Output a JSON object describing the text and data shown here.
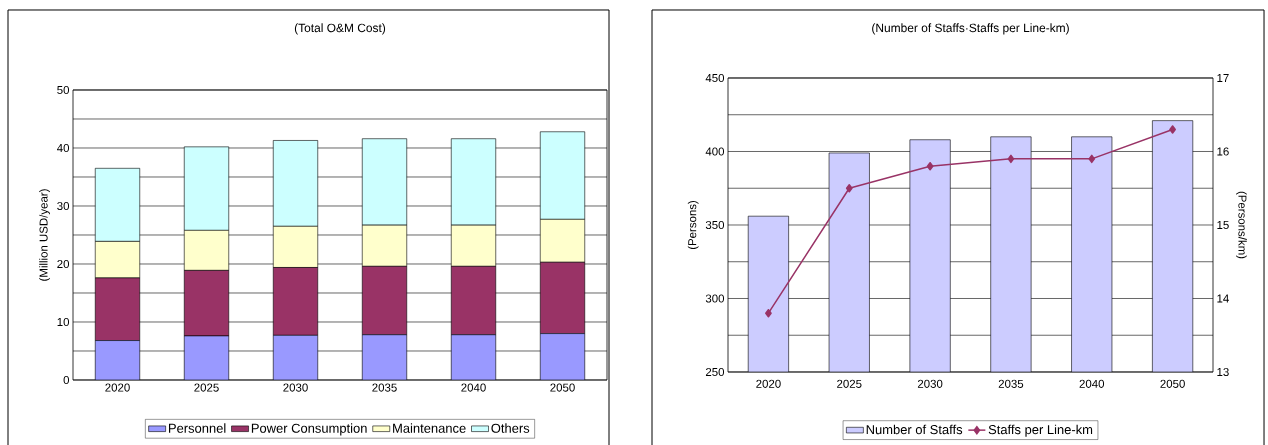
{
  "chart_data": [
    {
      "type": "bar",
      "title": "(Total O&M Cost)",
      "ylabel": "(Million USD/year)",
      "stacked": true,
      "grid": "y",
      "legend": "bottom",
      "categories": [
        "2020",
        "2025",
        "2030",
        "2035",
        "2040",
        "2050"
      ],
      "ylim": [
        0,
        50
      ],
      "yticks": [
        0,
        {
          "value": 5,
          "label": null
        },
        10,
        {
          "value": 15,
          "label": null
        },
        20,
        {
          "value": 25,
          "label": null
        },
        30,
        {
          "value": 35,
          "label": null
        },
        40,
        {
          "value": 45,
          "label": null
        },
        50
      ],
      "series": [
        {
          "name": "Personnel",
          "color": "#9999ff",
          "values": [
            6.8,
            7.6,
            7.7,
            7.8,
            7.8,
            8.0
          ]
        },
        {
          "name": "Power Consumption",
          "color": "#993366",
          "values": [
            10.8,
            11.3,
            11.7,
            11.8,
            11.8,
            12.3
          ]
        },
        {
          "name": "Maintenance",
          "color": "#ffffcc",
          "values": [
            6.3,
            6.9,
            7.1,
            7.1,
            7.1,
            7.4
          ]
        },
        {
          "name": "Others",
          "color": "#ccffff",
          "values": [
            12.6,
            14.4,
            14.8,
            14.9,
            14.9,
            15.1
          ]
        }
      ]
    },
    {
      "type": "bar",
      "title": "(Number of Staffs·Staffs per Line-km)",
      "ylabel": "(Persons)",
      "y2label": "(Persons/km)",
      "grid": "y",
      "legend": "bottom",
      "categories": [
        "2020",
        "2025",
        "2030",
        "2035",
        "2040",
        "2050"
      ],
      "ylim": [
        250,
        450
      ],
      "yticks": [
        250,
        {
          "value": 275,
          "label": null
        },
        300,
        {
          "value": 325,
          "label": null
        },
        350,
        {
          "value": 375,
          "label": null
        },
        400,
        {
          "value": 425,
          "label": null
        },
        450
      ],
      "y2lim": [
        13,
        17
      ],
      "y2ticks": [
        13,
        14,
        15,
        16,
        17
      ],
      "series": [
        {
          "name": "Number of Staffs",
          "color": "#ccccff",
          "values": [
            356,
            399,
            408,
            410,
            410,
            421
          ]
        },
        {
          "name": "Staffs per Line-km",
          "type": "line",
          "axis": "y2",
          "marker": "diamond",
          "line_style": "solid",
          "color": "#993366",
          "values": [
            13.8,
            15.5,
            15.8,
            15.9,
            15.9,
            16.3
          ]
        }
      ]
    }
  ]
}
